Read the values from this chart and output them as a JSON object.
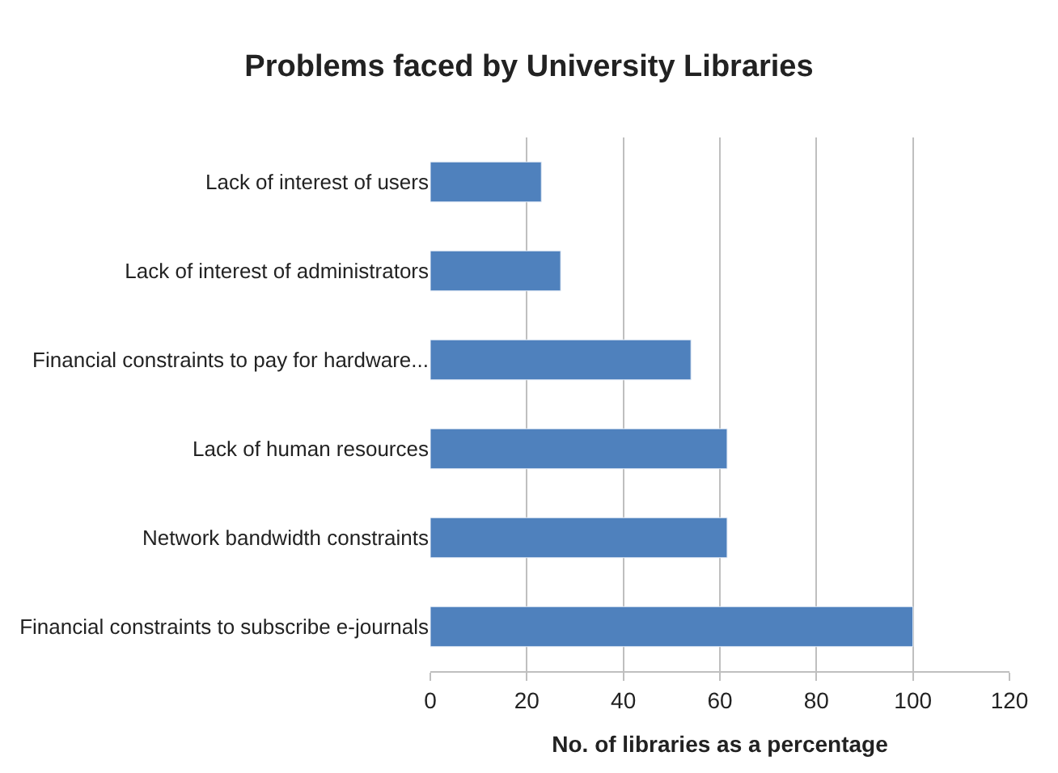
{
  "chart_data": {
    "type": "bar",
    "orientation": "horizontal",
    "title": "Problems faced by University Libraries",
    "xlabel": "No. of libraries as a percentage",
    "categories": [
      "Lack of interest of users",
      "Lack of interest of administrators",
      "Financial constraints to pay for hardware...",
      "Lack of human resources",
      "Network bandwidth constraints",
      "Financial constraints to subscribe e-journals"
    ],
    "values": [
      23,
      27,
      54,
      61.5,
      61.5,
      100
    ],
    "color": "#4f81bd",
    "xlim": [
      0,
      120
    ],
    "xticks": [
      0,
      20,
      40,
      60,
      80,
      100,
      120
    ],
    "grid": "x"
  }
}
